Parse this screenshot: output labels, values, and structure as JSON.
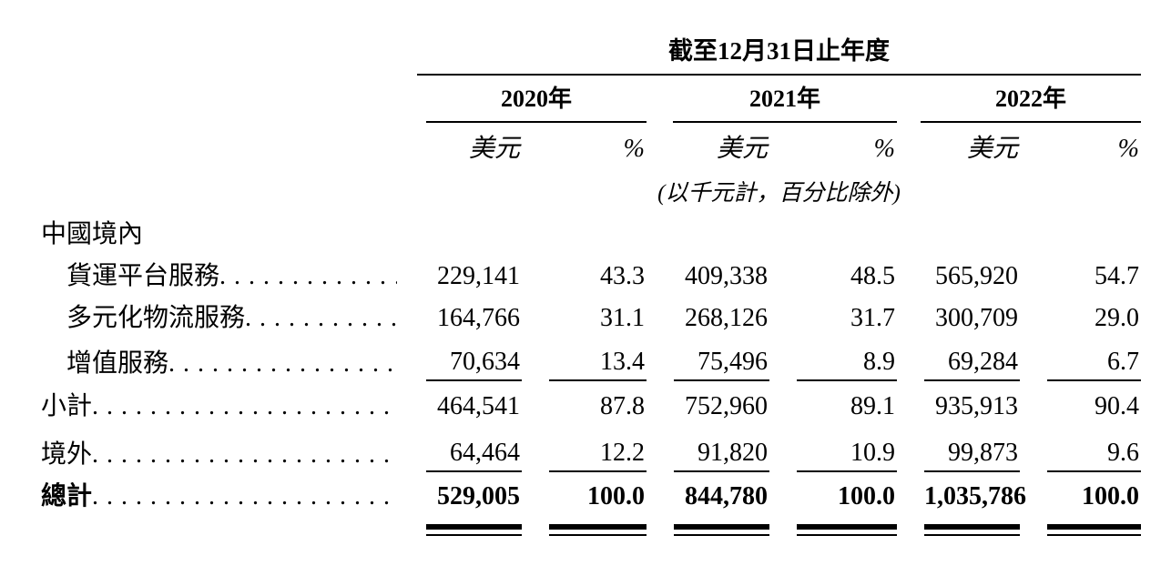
{
  "meta": {
    "ink_color": "#000000",
    "background_color": "#ffffff"
  },
  "table": {
    "period_header": "截至12月31日止年度",
    "years": [
      {
        "label": "2020年"
      },
      {
        "label": "2021年"
      },
      {
        "label": "2022年"
      }
    ],
    "col_headers": {
      "usd": "美元",
      "pct": "%"
    },
    "unit_note": "(以千元計，百分比除外)",
    "section_header": "中國境內",
    "rows": [
      {
        "label": "貨運平台服務",
        "values": [
          "229,141",
          "43.3",
          "409,338",
          "48.5",
          "565,920",
          "54.7"
        ]
      },
      {
        "label": "多元化物流服務",
        "values": [
          "164,766",
          "31.1",
          "268,126",
          "31.7",
          "300,709",
          "29.0"
        ]
      },
      {
        "label": "增值服務",
        "values": [
          "70,634",
          "13.4",
          "75,496",
          "8.9",
          "69,284",
          "6.7"
        ]
      },
      {
        "label": "小計",
        "values": [
          "464,541",
          "87.8",
          "752,960",
          "89.1",
          "935,913",
          "90.4"
        ]
      },
      {
        "label": "境外",
        "values": [
          "64,464",
          "12.2",
          "91,820",
          "10.9",
          "99,873",
          "9.6"
        ]
      },
      {
        "label": "總計",
        "values": [
          "529,005",
          "100.0",
          "844,780",
          "100.0",
          "1,035,786",
          "100.0"
        ]
      }
    ]
  }
}
